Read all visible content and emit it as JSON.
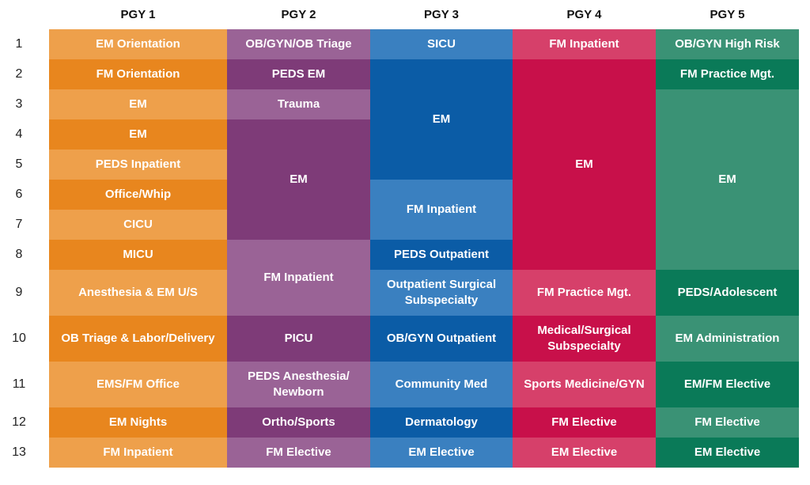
{
  "columns": [
    "PGY 1",
    "PGY 2",
    "PGY 3",
    "PGY 4",
    "PGY 5"
  ],
  "rows": [
    "1",
    "2",
    "3",
    "4",
    "5",
    "6",
    "7",
    "8",
    "9",
    "10",
    "11",
    "12",
    "13"
  ],
  "colors": {
    "pgy1": {
      "light": "#EEA04B",
      "dark": "#E8861E"
    },
    "pgy2": {
      "light": "#9A6396",
      "dark": "#7E3B78"
    },
    "pgy3": {
      "light": "#3A80C0",
      "dark": "#0B5CA6"
    },
    "pgy4": {
      "light": "#D6406A",
      "dark": "#C8104A"
    },
    "pgy5": {
      "light": "#3A9275",
      "dark": "#0A7A58"
    }
  },
  "schedule": [
    [
      {
        "label": "EM Orientation",
        "start": 1,
        "span": 1,
        "shade": "light"
      },
      {
        "label": "FM Orientation",
        "start": 2,
        "span": 1,
        "shade": "dark"
      },
      {
        "label": "EM",
        "start": 3,
        "span": 1,
        "shade": "light"
      },
      {
        "label": "EM",
        "start": 4,
        "span": 1,
        "shade": "dark"
      },
      {
        "label": "PEDS Inpatient",
        "start": 5,
        "span": 1,
        "shade": "light"
      },
      {
        "label": "Office/Whip",
        "start": 6,
        "span": 1,
        "shade": "dark"
      },
      {
        "label": "CICU",
        "start": 7,
        "span": 1,
        "shade": "light"
      },
      {
        "label": "MICU",
        "start": 8,
        "span": 1,
        "shade": "dark"
      },
      {
        "label": "Anesthesia & EM U/S",
        "start": 9,
        "span": 1,
        "shade": "light"
      },
      {
        "label": "OB Triage & Labor/Delivery",
        "start": 10,
        "span": 1,
        "shade": "dark"
      },
      {
        "label": "EMS/FM Office",
        "start": 11,
        "span": 1,
        "shade": "light"
      },
      {
        "label": "EM Nights",
        "start": 12,
        "span": 1,
        "shade": "dark"
      },
      {
        "label": "FM Inpatient",
        "start": 13,
        "span": 1,
        "shade": "light"
      }
    ],
    [
      {
        "label": "OB/GYN/OB Triage",
        "start": 1,
        "span": 1,
        "shade": "light"
      },
      {
        "label": "PEDS EM",
        "start": 2,
        "span": 1,
        "shade": "dark"
      },
      {
        "label": "Trauma",
        "start": 3,
        "span": 1,
        "shade": "light"
      },
      {
        "label": "EM",
        "start": 4,
        "span": 4,
        "shade": "dark"
      },
      {
        "label": "FM Inpatient",
        "start": 8,
        "span": 2,
        "shade": "light"
      },
      {
        "label": "PICU",
        "start": 10,
        "span": 1,
        "shade": "dark"
      },
      {
        "label": "PEDS Anesthesia/\nNewborn",
        "start": 11,
        "span": 1,
        "shade": "light"
      },
      {
        "label": "Ortho/Sports",
        "start": 12,
        "span": 1,
        "shade": "dark"
      },
      {
        "label": "FM Elective",
        "start": 13,
        "span": 1,
        "shade": "light"
      }
    ],
    [
      {
        "label": "SICU",
        "start": 1,
        "span": 1,
        "shade": "light"
      },
      {
        "label": "EM",
        "start": 2,
        "span": 4,
        "shade": "dark"
      },
      {
        "label": "FM Inpatient",
        "start": 6,
        "span": 2,
        "shade": "light"
      },
      {
        "label": "PEDS Outpatient",
        "start": 8,
        "span": 1,
        "shade": "dark"
      },
      {
        "label": "Outpatient Surgical\nSubspecialty",
        "start": 9,
        "span": 1,
        "shade": "light"
      },
      {
        "label": "OB/GYN Outpatient",
        "start": 10,
        "span": 1,
        "shade": "dark"
      },
      {
        "label": "Community Med",
        "start": 11,
        "span": 1,
        "shade": "light"
      },
      {
        "label": "Dermatology",
        "start": 12,
        "span": 1,
        "shade": "dark"
      },
      {
        "label": "EM Elective",
        "start": 13,
        "span": 1,
        "shade": "light"
      }
    ],
    [
      {
        "label": "FM Inpatient",
        "start": 1,
        "span": 1,
        "shade": "light"
      },
      {
        "label": "EM",
        "start": 2,
        "span": 7,
        "shade": "dark"
      },
      {
        "label": "FM Practice Mgt.",
        "start": 9,
        "span": 1,
        "shade": "light"
      },
      {
        "label": "Medical/Surgical\nSubspecialty",
        "start": 10,
        "span": 1,
        "shade": "dark"
      },
      {
        "label": "Sports Medicine/GYN",
        "start": 11,
        "span": 1,
        "shade": "light"
      },
      {
        "label": "FM Elective",
        "start": 12,
        "span": 1,
        "shade": "dark"
      },
      {
        "label": "EM Elective",
        "start": 13,
        "span": 1,
        "shade": "light"
      }
    ],
    [
      {
        "label": "OB/GYN High Risk",
        "start": 1,
        "span": 1,
        "shade": "light"
      },
      {
        "label": "FM Practice Mgt.",
        "start": 2,
        "span": 1,
        "shade": "dark"
      },
      {
        "label": "EM",
        "start": 3,
        "span": 6,
        "shade": "light"
      },
      {
        "label": "PEDS/Adolescent",
        "start": 9,
        "span": 1,
        "shade": "dark"
      },
      {
        "label": "EM Administration",
        "start": 10,
        "span": 1,
        "shade": "light"
      },
      {
        "label": "EM/FM Elective",
        "start": 11,
        "span": 1,
        "shade": "dark"
      },
      {
        "label": "FM Elective",
        "start": 12,
        "span": 1,
        "shade": "light"
      },
      {
        "label": "EM Elective",
        "start": 13,
        "span": 1,
        "shade": "dark"
      }
    ]
  ]
}
